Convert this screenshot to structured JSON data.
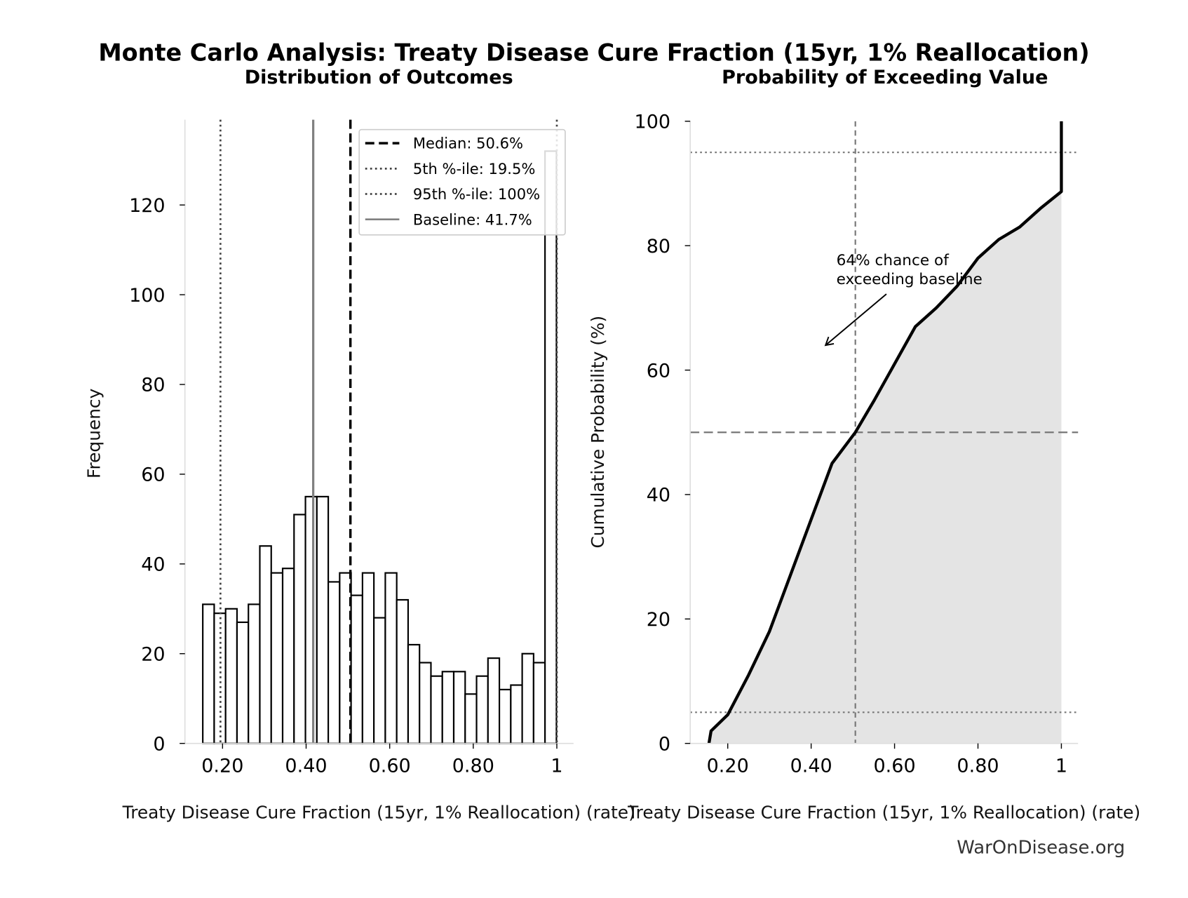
{
  "title": "Monte Carlo Analysis: Treaty Disease Cure Fraction (15yr, 1% Reallocation)",
  "footer": "WarOnDisease.org",
  "chart_data": [
    {
      "type": "bar",
      "title": "Distribution of Outcomes",
      "xlabel": "Treaty Disease Cure Fraction (15yr, 1% Reallocation) (rate)",
      "ylabel": "Frequency",
      "bin_start": 0.1527,
      "bin_width": 0.0273,
      "values": [
        31,
        29,
        30,
        27,
        31,
        44,
        38,
        39,
        51,
        55,
        55,
        36,
        38,
        33,
        38,
        28,
        38,
        32,
        22,
        18,
        15,
        16,
        16,
        11,
        15,
        19,
        12,
        13,
        20,
        18,
        132
      ],
      "xlim": [
        0.11,
        1.04
      ],
      "ylim": [
        0,
        139
      ],
      "xticks": [
        0.2,
        0.4,
        0.6,
        0.8,
        1.0
      ],
      "xtick_labels": [
        "0.20",
        "0.40",
        "0.60",
        "0.80",
        "1"
      ],
      "yticks": [
        0,
        20,
        40,
        60,
        80,
        100,
        120
      ],
      "ytick_labels": [
        "0",
        "20",
        "40",
        "60",
        "80",
        "100",
        "120"
      ],
      "legend_position": "top-right",
      "reference_lines": [
        {
          "label": "Median: 50.6%",
          "x": 0.506,
          "style": "dashed",
          "color": "#000000"
        },
        {
          "label": "5th %-ile: 19.5%",
          "x": 0.195,
          "style": "dotted",
          "color": "#444444"
        },
        {
          "label": "95th %-ile: 100%",
          "x": 1.0,
          "style": "dotted",
          "color": "#444444"
        },
        {
          "label": "Baseline: 41.7%",
          "x": 0.417,
          "style": "solid",
          "color": "#808080"
        }
      ]
    },
    {
      "type": "area",
      "title": "Probability of Exceeding Value",
      "xlabel": "Treaty Disease Cure Fraction (15yr, 1% Reallocation) (rate)",
      "ylabel": "Cumulative Probability (%)",
      "x": [
        0.155,
        0.16,
        0.2,
        0.25,
        0.3,
        0.35,
        0.4,
        0.45,
        0.506,
        0.55,
        0.6,
        0.65,
        0.7,
        0.75,
        0.8,
        0.85,
        0.9,
        0.95,
        1.0,
        1.0
      ],
      "y": [
        0,
        2,
        4.6,
        11,
        18,
        27,
        36,
        45,
        50,
        55,
        61,
        67,
        70,
        73.5,
        78,
        81,
        83,
        86,
        88.7,
        100
      ],
      "xlim": [
        0.11,
        1.04
      ],
      "ylim": [
        0,
        100
      ],
      "xticks": [
        0.2,
        0.4,
        0.6,
        0.8,
        1.0
      ],
      "xtick_labels": [
        "0.20",
        "0.40",
        "0.60",
        "0.80",
        "1"
      ],
      "yticks": [
        0,
        20,
        40,
        60,
        80,
        100
      ],
      "ytick_labels": [
        "0",
        "20",
        "40",
        "60",
        "80",
        "100"
      ],
      "fill_color": "#e4e4e4",
      "hlines": [
        {
          "y": 95,
          "style": "dotted"
        },
        {
          "y": 50,
          "style": "dashed"
        },
        {
          "y": 5,
          "style": "dotted"
        }
      ],
      "vline": {
        "x": 0.506,
        "style": "dashed"
      },
      "annotation": {
        "lines": [
          "64% chance of",
          "exceeding baseline"
        ],
        "points_to": {
          "x": 0.42,
          "y": 64
        }
      }
    }
  ]
}
